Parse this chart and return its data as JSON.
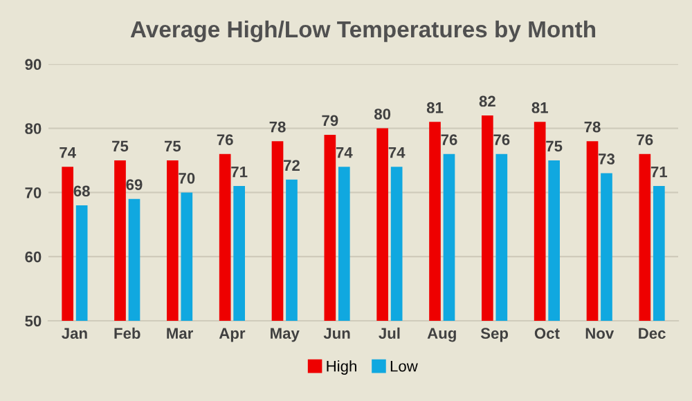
{
  "chart_data": {
    "type": "bar",
    "title": "Average High/Low Temperatures by Month",
    "categories": [
      "Jan",
      "Feb",
      "Mar",
      "Apr",
      "May",
      "Jun",
      "Jul",
      "Aug",
      "Sep",
      "Oct",
      "Nov",
      "Dec"
    ],
    "series": [
      {
        "name": "High",
        "color": "#ee0000",
        "values": [
          74,
          75,
          75,
          76,
          78,
          79,
          80,
          81,
          82,
          81,
          78,
          76
        ]
      },
      {
        "name": "Low",
        "color": "#10a8e0",
        "values": [
          68,
          69,
          70,
          71,
          72,
          74,
          74,
          76,
          76,
          75,
          73,
          71
        ]
      }
    ],
    "ylim": [
      50,
      90
    ],
    "yticks": [
      50,
      60,
      70,
      80,
      90
    ],
    "grid": "y",
    "legend": "bottom",
    "data_labels": true
  }
}
